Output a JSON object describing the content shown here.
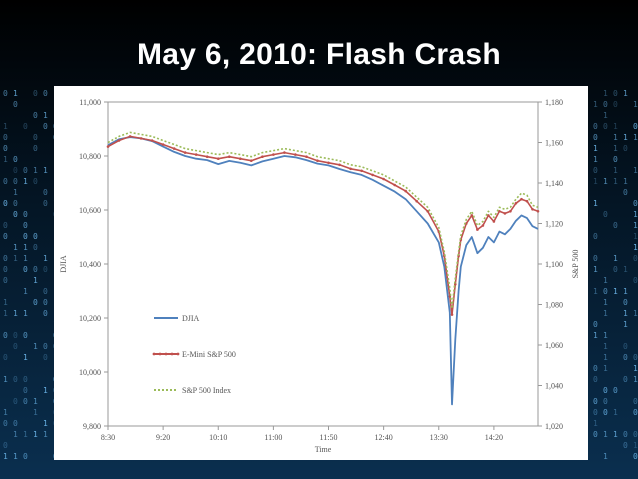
{
  "slide": {
    "title": "May 6, 2010: Flash Crash"
  },
  "chart_data": {
    "type": "line",
    "xlabel": "Time",
    "ylabel_left": "DJIA",
    "ylabel_right": "S&P 500",
    "x_ticks": [
      "8:30",
      "9:20",
      "10:10",
      "11:00",
      "11:50",
      "12:40",
      "13:30",
      "14:20"
    ],
    "x_range": [
      "8:30",
      "15:00"
    ],
    "y_left_ticks": [
      "9,800",
      "10,000",
      "10,200",
      "10,400",
      "10,600",
      "10,800",
      "11,000"
    ],
    "y_left_range": [
      9800,
      11000
    ],
    "y_right_ticks": [
      "1,020",
      "1,040",
      "1,060",
      "1,080",
      "1,100",
      "1,120",
      "1,140",
      "1,160",
      "1,180"
    ],
    "y_right_range": [
      1020,
      1180
    ],
    "grid": false,
    "legend_position": "left",
    "series": [
      {
        "name": "DJIA",
        "axis": "left",
        "color": "#4f81bd",
        "style": "solid",
        "x": [
          "8:30",
          "8:40",
          "8:50",
          "9:00",
          "9:10",
          "9:20",
          "9:30",
          "9:40",
          "9:50",
          "10:00",
          "10:10",
          "10:20",
          "10:30",
          "10:40",
          "10:50",
          "11:00",
          "11:10",
          "11:20",
          "11:30",
          "11:40",
          "11:50",
          "12:00",
          "12:10",
          "12:20",
          "12:30",
          "12:40",
          "12:50",
          "13:00",
          "13:10",
          "13:20",
          "13:30",
          "13:35",
          "13:40",
          "13:42",
          "13:45",
          "13:48",
          "13:50",
          "13:55",
          "14:00",
          "14:05",
          "14:10",
          "14:15",
          "14:20",
          "14:25",
          "14:30",
          "14:35",
          "14:40",
          "14:45",
          "14:50",
          "14:55",
          "15:00"
        ],
        "values": [
          10840,
          10862,
          10870,
          10865,
          10855,
          10835,
          10815,
          10800,
          10790,
          10785,
          10770,
          10782,
          10775,
          10765,
          10780,
          10790,
          10800,
          10795,
          10785,
          10772,
          10765,
          10752,
          10740,
          10730,
          10712,
          10690,
          10668,
          10640,
          10595,
          10550,
          10480,
          10390,
          10220,
          9880,
          10120,
          10300,
          10390,
          10470,
          10500,
          10440,
          10460,
          10500,
          10480,
          10520,
          10510,
          10530,
          10560,
          10580,
          10570,
          10540,
          10530
        ]
      },
      {
        "name": "E-Mini S&P 500",
        "axis": "right",
        "color": "#c0504d",
        "style": "marker",
        "x": [
          "8:30",
          "8:40",
          "8:50",
          "9:00",
          "9:10",
          "9:20",
          "9:30",
          "9:40",
          "9:50",
          "10:00",
          "10:10",
          "10:20",
          "10:30",
          "10:40",
          "10:50",
          "11:00",
          "11:10",
          "11:20",
          "11:30",
          "11:40",
          "11:50",
          "12:00",
          "12:10",
          "12:20",
          "12:30",
          "12:40",
          "12:50",
          "13:00",
          "13:10",
          "13:20",
          "13:30",
          "13:35",
          "13:40",
          "13:42",
          "13:45",
          "13:48",
          "13:50",
          "13:55",
          "14:00",
          "14:05",
          "14:10",
          "14:15",
          "14:20",
          "14:25",
          "14:30",
          "14:35",
          "14:40",
          "14:45",
          "14:50",
          "14:55",
          "15:00"
        ],
        "values": [
          1158,
          1161,
          1163,
          1162,
          1161,
          1159,
          1157,
          1155,
          1154,
          1153,
          1152,
          1153,
          1152,
          1151,
          1153,
          1154,
          1155,
          1154,
          1153,
          1151,
          1150,
          1149,
          1147,
          1146,
          1144,
          1142,
          1139,
          1136,
          1131,
          1126,
          1116,
          1104,
          1084,
          1075,
          1090,
          1104,
          1112,
          1120,
          1124,
          1117,
          1119,
          1124,
          1121,
          1126,
          1125,
          1126,
          1130,
          1132,
          1131,
          1127,
          1126
        ]
      },
      {
        "name": "S&P 500 Index",
        "axis": "right",
        "color": "#9bbb59",
        "style": "dotted",
        "x": [
          "8:30",
          "8:40",
          "8:50",
          "9:00",
          "9:10",
          "9:20",
          "9:30",
          "9:40",
          "9:50",
          "10:00",
          "10:10",
          "10:20",
          "10:30",
          "10:40",
          "10:50",
          "11:00",
          "11:10",
          "11:20",
          "11:30",
          "11:40",
          "11:50",
          "12:00",
          "12:10",
          "12:20",
          "12:30",
          "12:40",
          "12:50",
          "13:00",
          "13:10",
          "13:20",
          "13:30",
          "13:35",
          "13:40",
          "13:42",
          "13:45",
          "13:48",
          "13:50",
          "13:55",
          "14:00",
          "14:05",
          "14:10",
          "14:15",
          "14:20",
          "14:25",
          "14:30",
          "14:35",
          "14:40",
          "14:45",
          "14:50",
          "14:55",
          "15:00"
        ],
        "values": [
          1160,
          1163,
          1165,
          1164,
          1163,
          1161,
          1159,
          1157,
          1156,
          1155,
          1154,
          1155,
          1154,
          1153,
          1155,
          1156,
          1157,
          1156,
          1155,
          1153,
          1152,
          1151,
          1149,
          1148,
          1146,
          1144,
          1141,
          1138,
          1133,
          1128,
          1118,
          1106,
          1088,
          1078,
          1093,
          1106,
          1114,
          1122,
          1126,
          1119,
          1121,
          1126,
          1123,
          1128,
          1127,
          1128,
          1132,
          1135,
          1134,
          1129,
          1128
        ]
      }
    ]
  }
}
